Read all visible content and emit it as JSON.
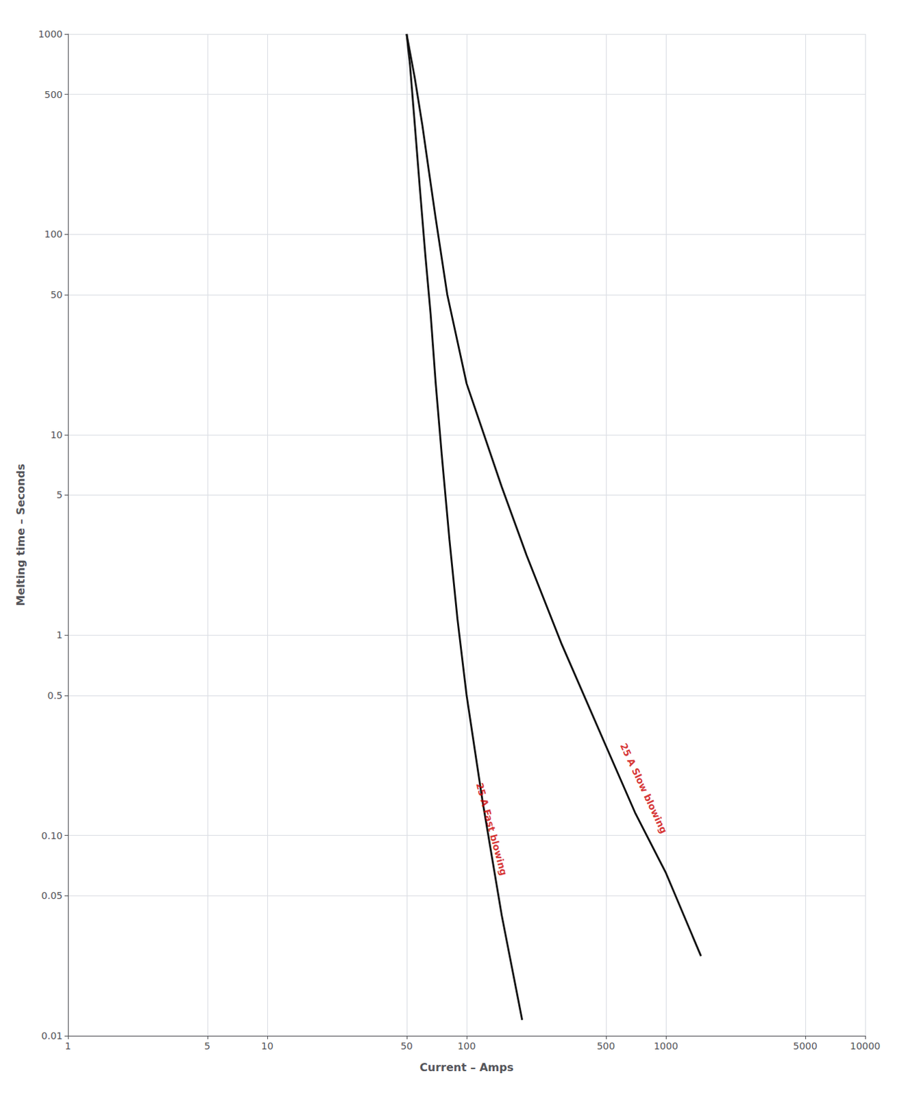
{
  "chart_data": {
    "type": "line",
    "xlabel": "Current – Amps",
    "ylabel": "Melting time – Seconds",
    "log": true,
    "grid": true,
    "xlim": [
      1,
      10000
    ],
    "ylim": [
      0.01,
      1000
    ],
    "xticks": [
      1,
      5,
      10,
      50,
      100,
      500,
      1000,
      5000,
      10000
    ],
    "yticks": [
      0.01,
      0.05,
      {
        "value": 0.1,
        "label": "0.10"
      },
      0.5,
      1,
      5,
      10,
      50,
      100,
      500,
      1000
    ],
    "series": [
      {
        "color": "#111111",
        "x": [
          50,
          52,
          55,
          58,
          62,
          66,
          70,
          75,
          82,
          90,
          100,
          120,
          150,
          190
        ],
        "values": [
          1000,
          700,
          350,
          180,
          80,
          40,
          18,
          8,
          3.0,
          1.2,
          0.5,
          0.15,
          0.04,
          0.012
        ]
      },
      {
        "color": "#111111",
        "x": [
          50,
          55,
          60,
          65,
          70,
          80,
          100,
          150,
          200,
          300,
          500,
          700,
          1000,
          1500
        ],
        "values": [
          1000,
          600,
          350,
          200,
          120,
          50,
          18,
          5.5,
          2.5,
          0.9,
          0.28,
          0.13,
          0.065,
          0.025
        ]
      }
    ],
    "annotations": [
      {
        "text": "25 A Fast blowing",
        "x": 110,
        "y": 0.18,
        "color": "#cc0000"
      },
      {
        "text": "25 A Slow blowing",
        "x": 580,
        "y": 0.28,
        "color": "#cc0000"
      }
    ]
  }
}
